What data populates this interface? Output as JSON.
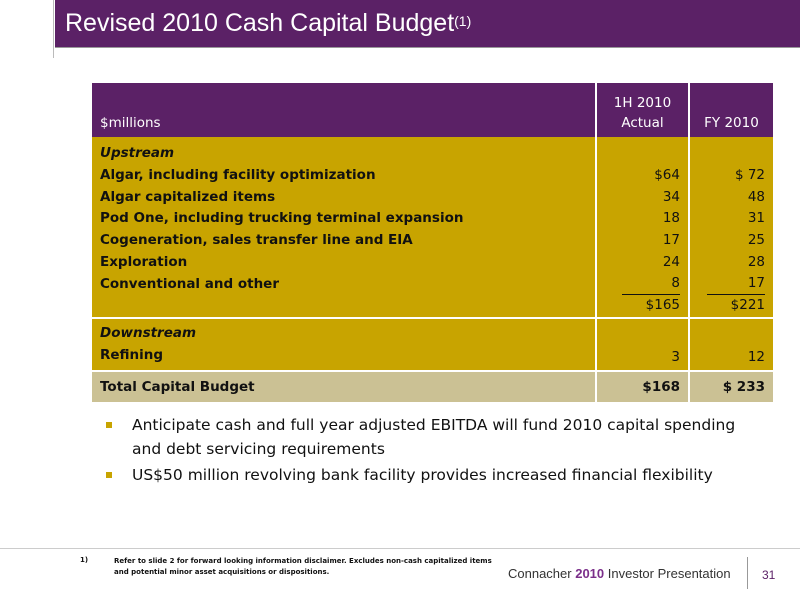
{
  "title": {
    "text": "Revised 2010 Cash Capital Budget",
    "sup": "(1)"
  },
  "table": {
    "header": {
      "label": "$millions",
      "col1_line1": "1H 2010",
      "col1_line2": "Actual",
      "col2": "FY 2010"
    },
    "upstream_heading": "Upstream",
    "upstream_rows": [
      {
        "label": "Algar, including facility optimization",
        "h1": "$64",
        "fy": "$ 72"
      },
      {
        "label": "Algar capitalized items",
        "h1": "34",
        "fy": "48"
      },
      {
        "label": "Pod One, including trucking terminal expansion",
        "h1": "18",
        "fy": "31"
      },
      {
        "label": "Cogeneration, sales transfer line and EIA",
        "h1": "17",
        "fy": "25"
      },
      {
        "label": "Exploration",
        "h1": "24",
        "fy": "28"
      },
      {
        "label": "Conventional and other",
        "h1": "8",
        "fy": "17"
      }
    ],
    "upstream_subtotal": {
      "h1": "$165",
      "fy": "$221"
    },
    "downstream_heading": "Downstream",
    "downstream_rows": [
      {
        "label": "Refining",
        "h1": "3",
        "fy": "12"
      }
    ],
    "total": {
      "label": "Total Capital Budget",
      "h1": "$168",
      "fy": "$ 233"
    }
  },
  "bullets": [
    "Anticipate cash and full year adjusted EBITDA will fund 2010 capital spending and debt servicing requirements",
    "US$50 million revolving bank facility provides increased financial flexibility"
  ],
  "footnote": {
    "number": "1)",
    "text": "Refer to slide 2 for forward looking information disclaimer.  Excludes non-cash capitalized items and potential minor asset acquisitions or dispositions."
  },
  "footer": {
    "brand_pre": "Connacher ",
    "brand_year": "2010",
    "brand_post": " Investor Presentation",
    "page": "31"
  },
  "colors": {
    "purple": "#5b2166",
    "gold": "#c8a400",
    "tan": "#cbc194"
  }
}
